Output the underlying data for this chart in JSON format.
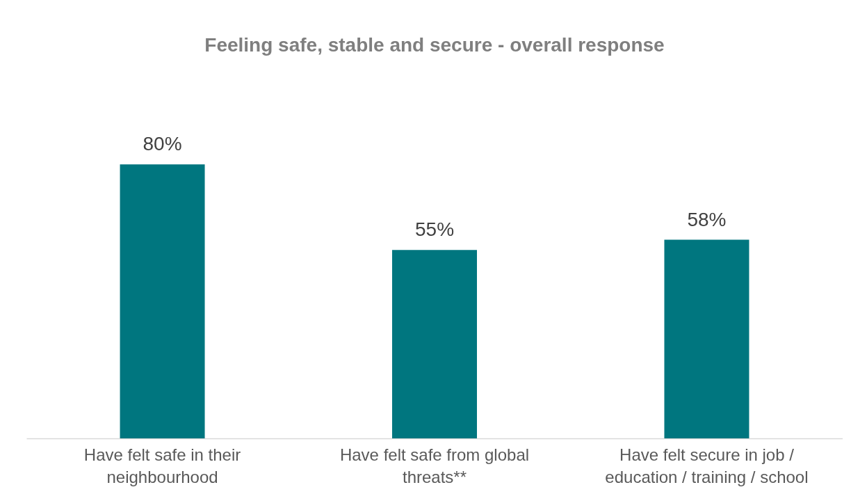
{
  "chart_data": {
    "type": "bar",
    "title": "Feeling safe, stable and secure - overall response",
    "categories": [
      "Have felt safe in their neighbourhood",
      "Have felt safe from global threats**",
      "Have felt secure in job / education / training / school"
    ],
    "values": [
      80,
      55,
      58
    ],
    "value_labels": [
      "80%",
      "55%",
      "58%"
    ],
    "color": "#00767f"
  }
}
